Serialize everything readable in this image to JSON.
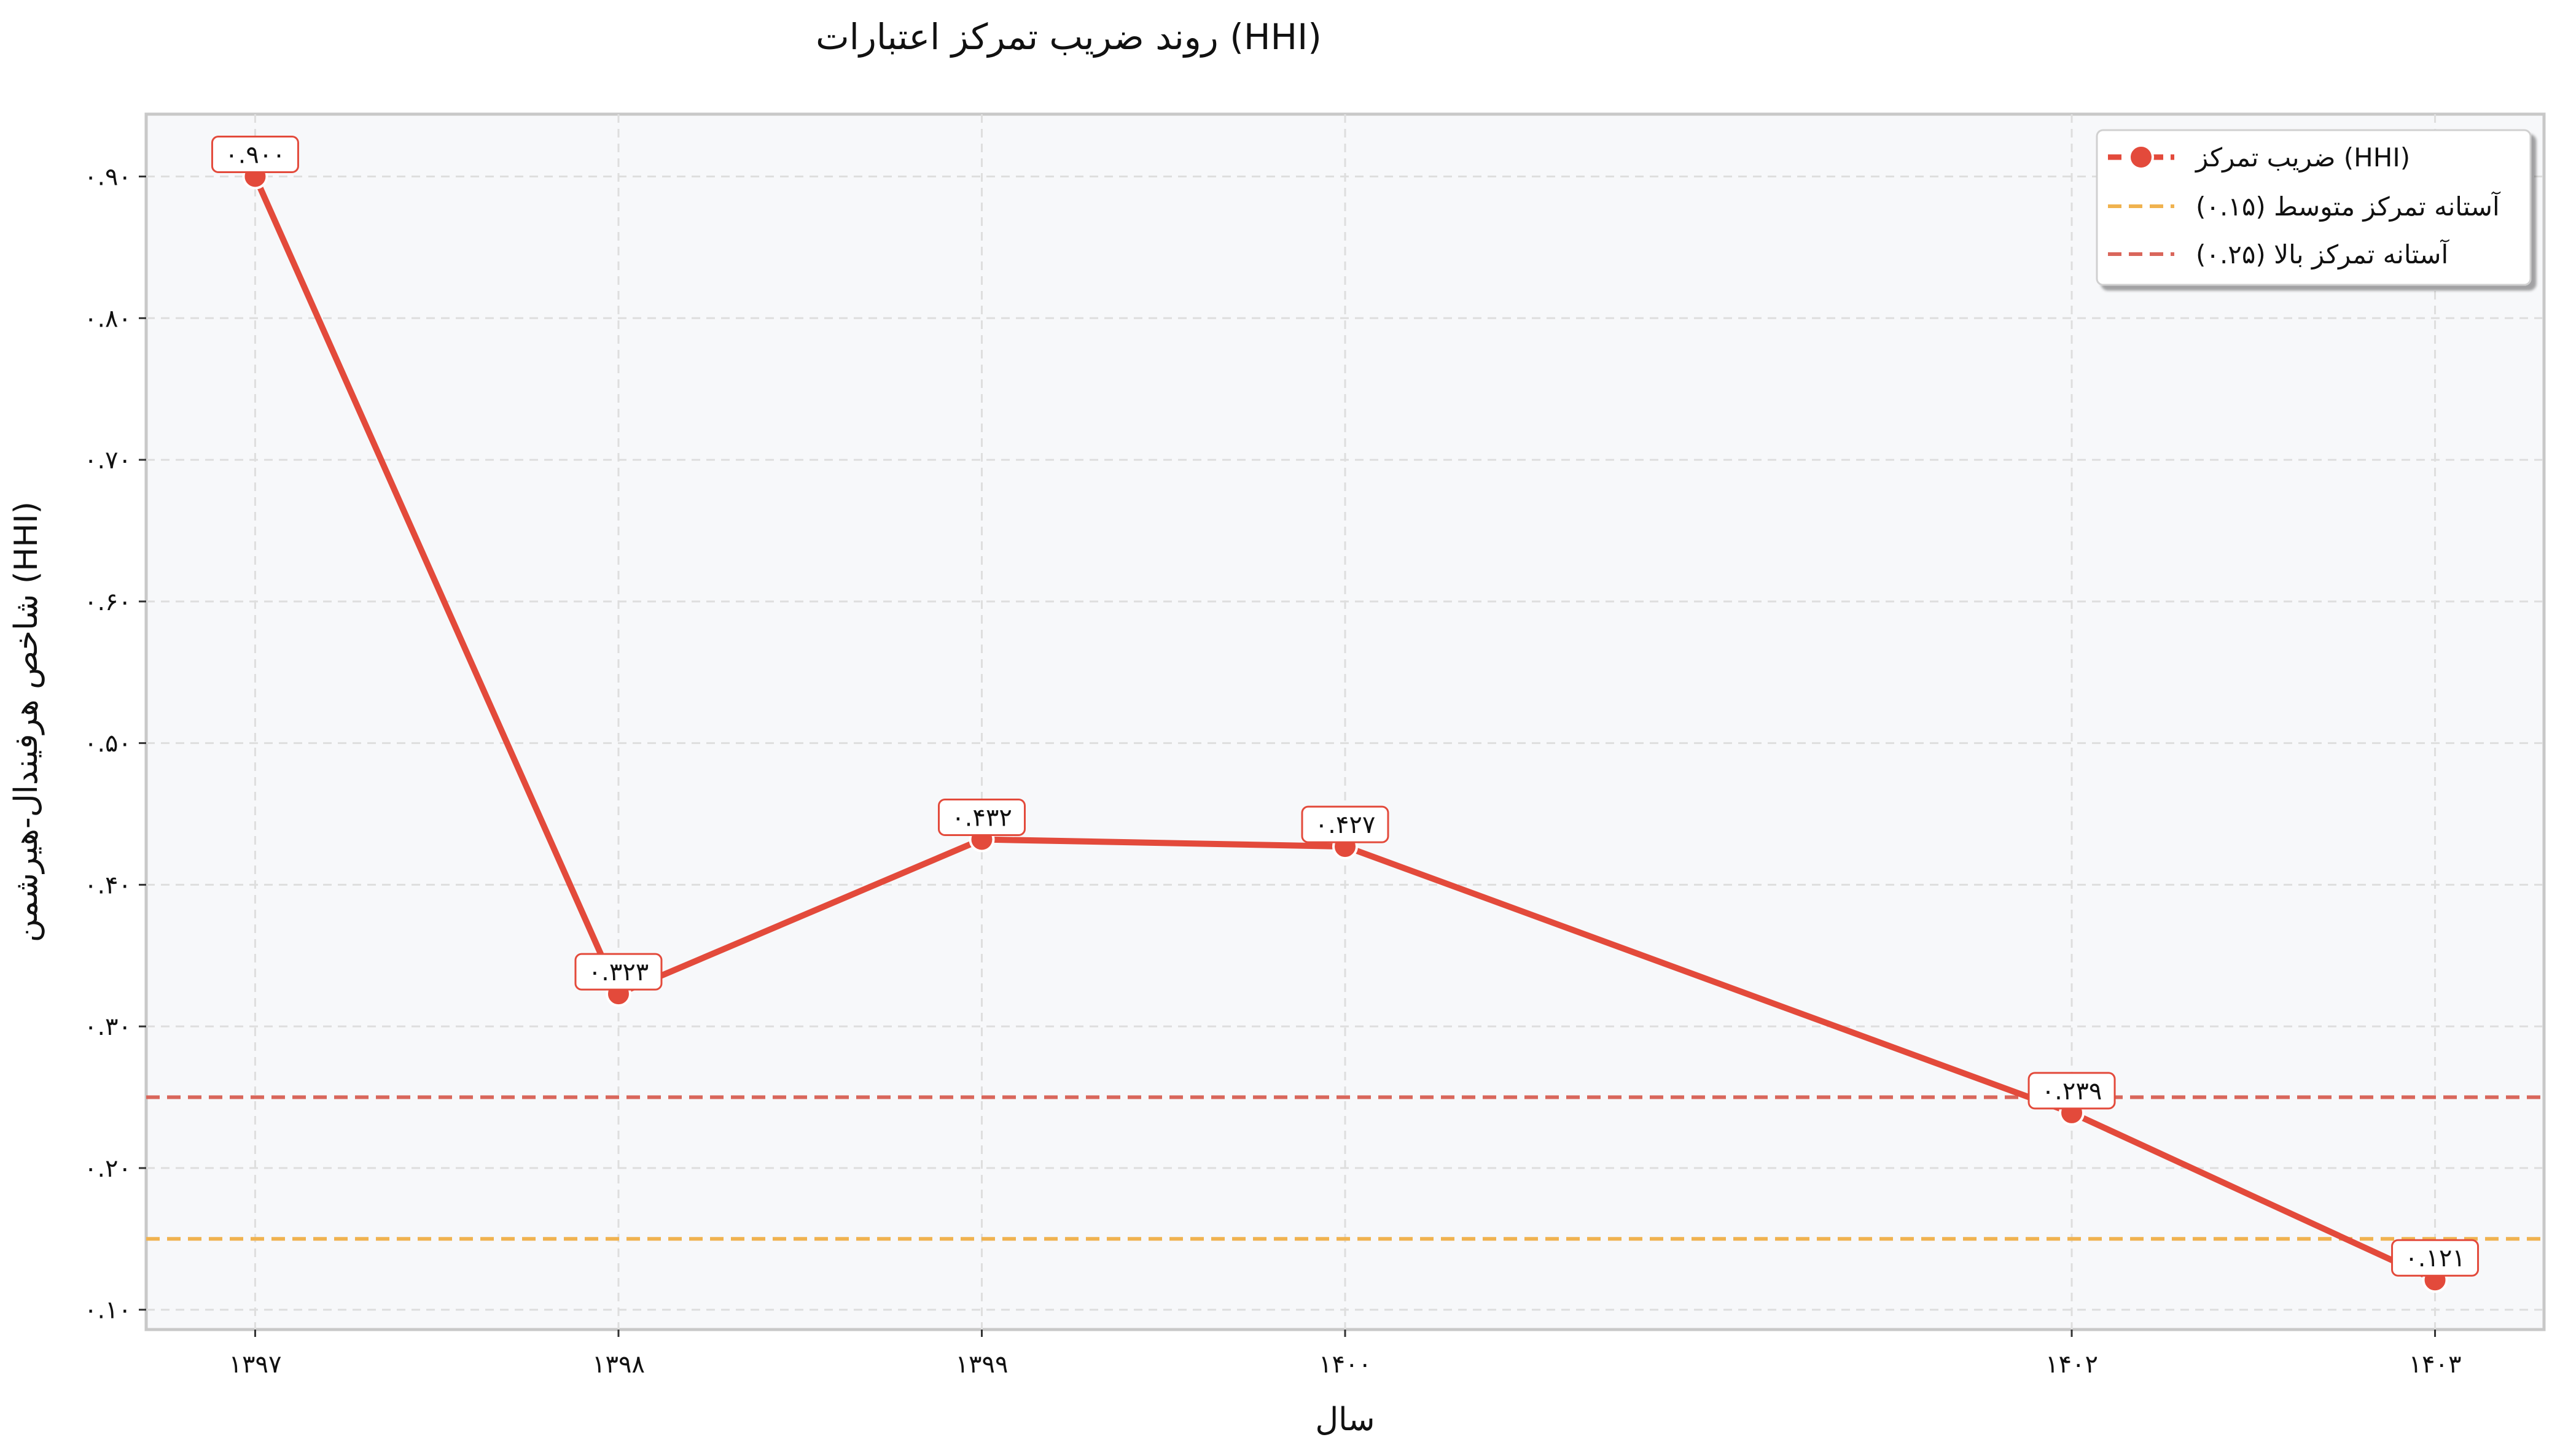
{
  "chart_data": {
    "type": "line",
    "title": "روند ضریب تمرکز اعتبارات (HHI)",
    "xlabel": "سال",
    "ylabel": "شاخص هرفیندال-هیرشمن (HHI)",
    "x": [
      1397,
      1398,
      1399,
      1400,
      1402,
      1403
    ],
    "x_tick_labels": [
      "۱۳۹۷",
      "۱۳۹۸",
      "۱۳۹۹",
      "۱۴۰۰",
      "۱۴۰۲",
      "۱۴۰۳"
    ],
    "xlim": [
      1396.7,
      1403.3
    ],
    "ylim": [
      0.086,
      0.944
    ],
    "y_ticks": [
      0.1,
      0.2,
      0.3,
      0.4,
      0.5,
      0.6,
      0.7,
      0.8,
      0.9
    ],
    "y_tick_labels": [
      "۰.۱۰",
      "۰.۲۰",
      "۰.۳۰",
      "۰.۴۰",
      "۰.۵۰",
      "۰.۶۰",
      "۰.۷۰",
      "۰.۸۰",
      "۰.۹۰"
    ],
    "grid": true,
    "legend_position": "top-right",
    "series": [
      {
        "name": "ضریب تمرکز (HHI)",
        "values": [
          0.9,
          0.323,
          0.432,
          0.427,
          0.239,
          0.121
        ],
        "labels": [
          "۰.۹۰۰",
          "۰.۳۲۳",
          "۰.۴۳۲",
          "۰.۴۲۷",
          "۰.۲۳۹",
          "۰.۱۲۱"
        ],
        "color": "#e34a3b"
      }
    ],
    "reference_lines": [
      {
        "name": "آستانه تمرکز متوسط (۰.۱۵)",
        "value": 0.15,
        "color": "#f0b24f"
      },
      {
        "name": "آستانه تمرکز بالا (۰.۲۵)",
        "value": 0.25,
        "color": "#d9665b"
      }
    ]
  },
  "colors": {
    "plot_background": "#f7f8fa",
    "frame": "#c8c8c8",
    "grid": "#dedede"
  }
}
